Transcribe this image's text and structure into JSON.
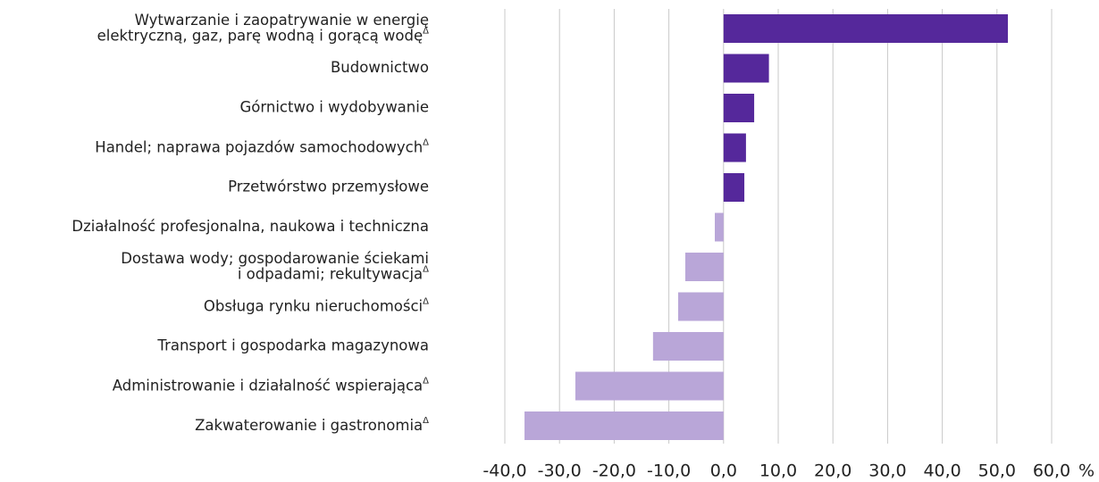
{
  "chart_data": {
    "type": "barh",
    "categories": [
      [
        "Wytwarzanie i zaopatrywanie w energię",
        "elektryczną, gaz, parę wodną i gorącą wodęΔ"
      ],
      [
        "Budownictwo"
      ],
      [
        "Górnictwo i wydobywanie"
      ],
      [
        "Handel; naprawa pojazdów samochodowychΔ"
      ],
      [
        "Przetwórstwo przemysłowe"
      ],
      [
        "Działalność profesjonalna, naukowa i techniczna"
      ],
      [
        "Dostawa wody; gospodarowanie ściekami",
        "i odpadami; rekultywacjaΔ"
      ],
      [
        "Obsługa rynku nieruchomościΔ"
      ],
      [
        "Transport i gospodarka magazynowa"
      ],
      [
        "Administrowanie i działalność wspierającaΔ"
      ],
      [
        "Zakwaterowanie i gastronomiaΔ"
      ]
    ],
    "values": [
      52.0,
      8.3,
      5.6,
      4.1,
      3.8,
      -1.6,
      -7.0,
      -8.3,
      -12.9,
      -27.1,
      -36.4
    ],
    "colors": [
      "#55289b",
      "#55289b",
      "#55289b",
      "#55289b",
      "#55289b",
      "#b9a6d8",
      "#b9a6d8",
      "#b9a6d8",
      "#b9a6d8",
      "#b9a6d8",
      "#b9a6d8"
    ],
    "xlim": [
      -40,
      60
    ],
    "xticks": [
      {
        "value": -40,
        "label": "-40,0"
      },
      {
        "value": -30,
        "label": "-30,0"
      },
      {
        "value": -20,
        "label": "-20,0"
      },
      {
        "value": -10,
        "label": "-10,0"
      },
      {
        "value": 0,
        "label": "0,0"
      },
      {
        "value": 10,
        "label": "10,0"
      },
      {
        "value": 20,
        "label": "20,0"
      },
      {
        "value": 30,
        "label": "30,0"
      },
      {
        "value": 40,
        "label": "40,0"
      },
      {
        "value": 50,
        "label": "50,0"
      },
      {
        "value": 60,
        "label": "60,0"
      }
    ],
    "x_unit": "%",
    "grid": true
  }
}
